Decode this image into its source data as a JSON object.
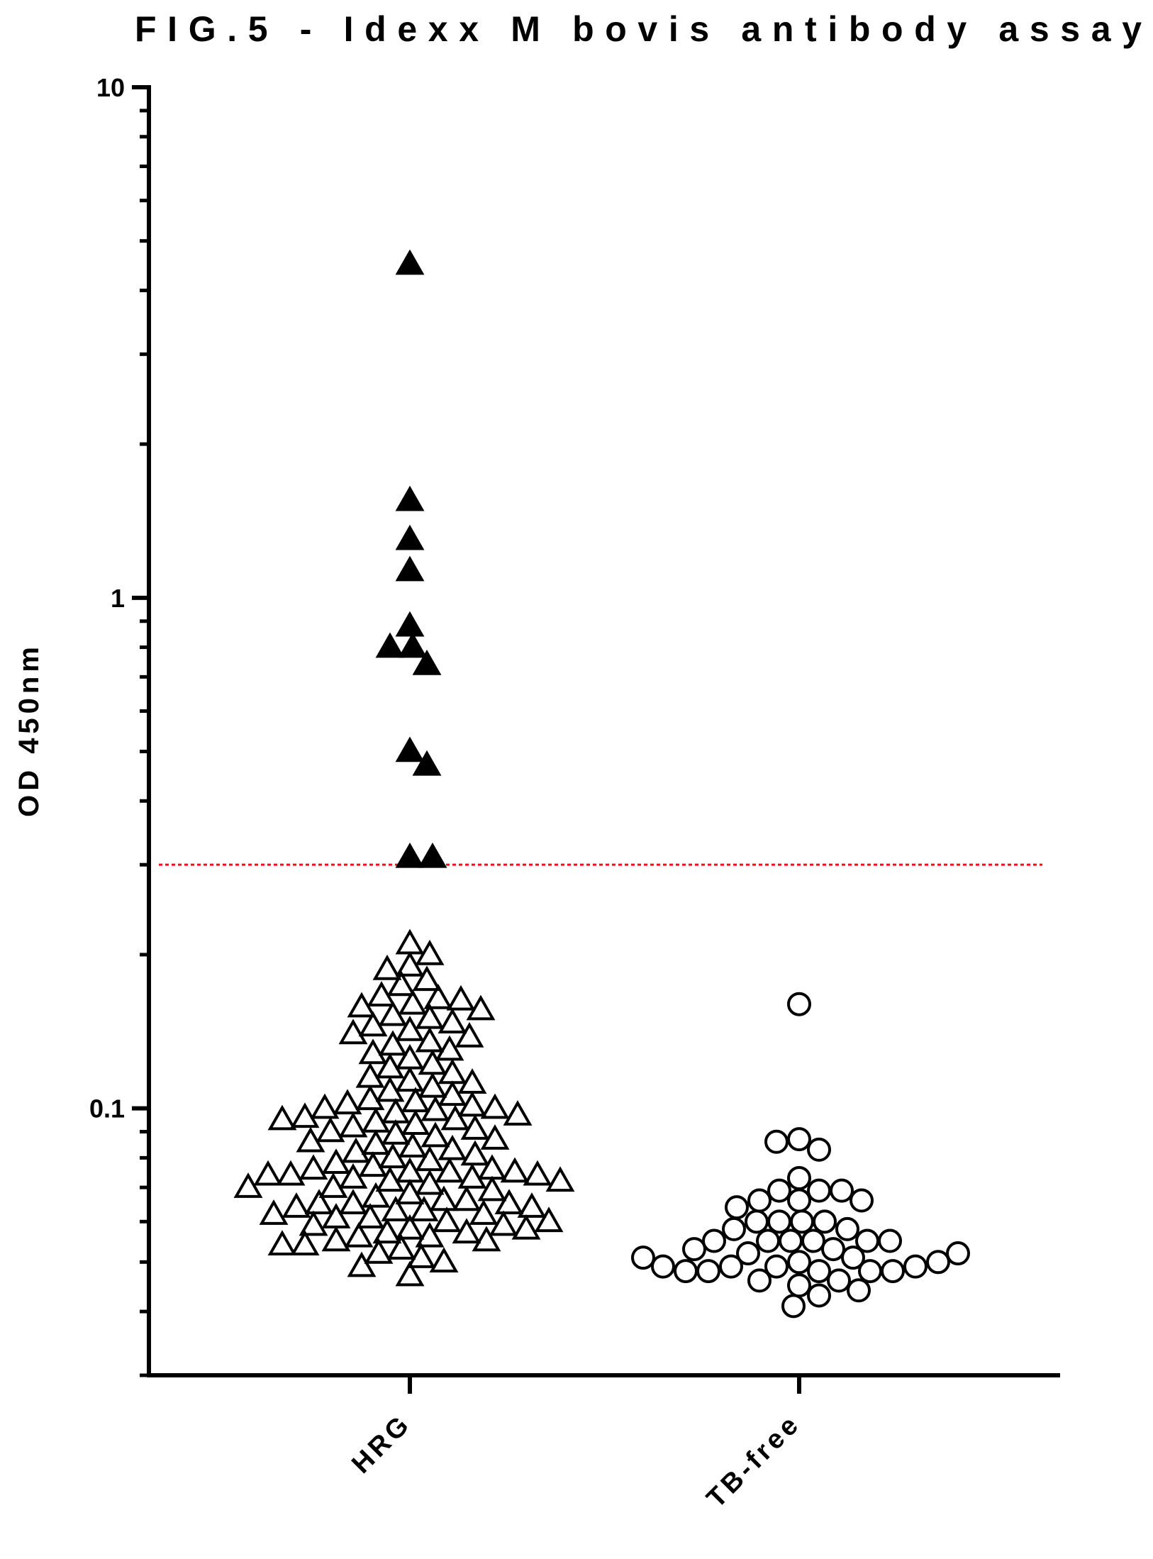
{
  "chart_data": {
    "type": "strip",
    "title": "FIG.5 - Idexx M bovis antibody assay",
    "y_label": "OD 450nm",
    "log_y": true,
    "ylim": [
      0.03,
      10
    ],
    "yticks": [
      0.1,
      1,
      10
    ],
    "minor_yticks": [
      0.03,
      0.04,
      0.05,
      0.06,
      0.07,
      0.08,
      0.09,
      0.2,
      0.3,
      0.4,
      0.5,
      0.6,
      0.7,
      0.8,
      0.9,
      2,
      3,
      4,
      5,
      6,
      7,
      8,
      9
    ],
    "cutoff": 0.3,
    "cutoff_color": "#e8141b",
    "categories": [
      "HRG",
      "TB-free"
    ],
    "series": [
      {
        "marker": "triangle",
        "color": "#000000",
        "filled_above_cutoff": true,
        "values": [
          4.5,
          1.55,
          1.3,
          1.13,
          0.88,
          0.8,
          0.8,
          0.74,
          0.5,
          0.47,
          0.31,
          0.31,
          0.21,
          0.2,
          0.19,
          0.187,
          0.178,
          0.174,
          0.166,
          0.164,
          0.163,
          0.16,
          0.158,
          0.156,
          0.152,
          0.15,
          0.147,
          0.145,
          0.142,
          0.14,
          0.138,
          0.135,
          0.133,
          0.13,
          0.128,
          0.125,
          0.122,
          0.12,
          0.117,
          0.115,
          0.113,
          0.112,
          0.11,
          0.108,
          0.106,
          0.104,
          0.103,
          0.102,
          0.101,
          0.1,
          0.1,
          0.099,
          0.098,
          0.097,
          0.096,
          0.095,
          0.095,
          0.094,
          0.093,
          0.092,
          0.091,
          0.09,
          0.089,
          0.088,
          0.087,
          0.086,
          0.085,
          0.084,
          0.083,
          0.082,
          0.081,
          0.08,
          0.079,
          0.078,
          0.077,
          0.076,
          0.076,
          0.075,
          0.075,
          0.075,
          0.074,
          0.074,
          0.074,
          0.073,
          0.073,
          0.072,
          0.072,
          0.071,
          0.07,
          0.07,
          0.069,
          0.068,
          0.067,
          0.066,
          0.066,
          0.065,
          0.065,
          0.065,
          0.064,
          0.064,
          0.063,
          0.063,
          0.062,
          0.062,
          0.061,
          0.061,
          0.06,
          0.06,
          0.059,
          0.059,
          0.058,
          0.058,
          0.057,
          0.057,
          0.056,
          0.056,
          0.055,
          0.055,
          0.054,
          0.054,
          0.053,
          0.052,
          0.051,
          0.05,
          0.049,
          0.047
        ]
      },
      {
        "marker": "circle",
        "color": "#000000",
        "filled_above_cutoff": true,
        "values": [
          0.16,
          0.087,
          0.083,
          0.086,
          0.073,
          0.069,
          0.069,
          0.069,
          0.066,
          0.066,
          0.066,
          0.064,
          0.06,
          0.06,
          0.06,
          0.06,
          0.058,
          0.058,
          0.055,
          0.055,
          0.055,
          0.055,
          0.055,
          0.055,
          0.053,
          0.052,
          0.051,
          0.05,
          0.049,
          0.049,
          0.048,
          0.048,
          0.048,
          0.048,
          0.048,
          0.049,
          0.049,
          0.05,
          0.051,
          0.052,
          0.053,
          0.046,
          0.046,
          0.045,
          0.044,
          0.043,
          0.041
        ]
      }
    ]
  }
}
